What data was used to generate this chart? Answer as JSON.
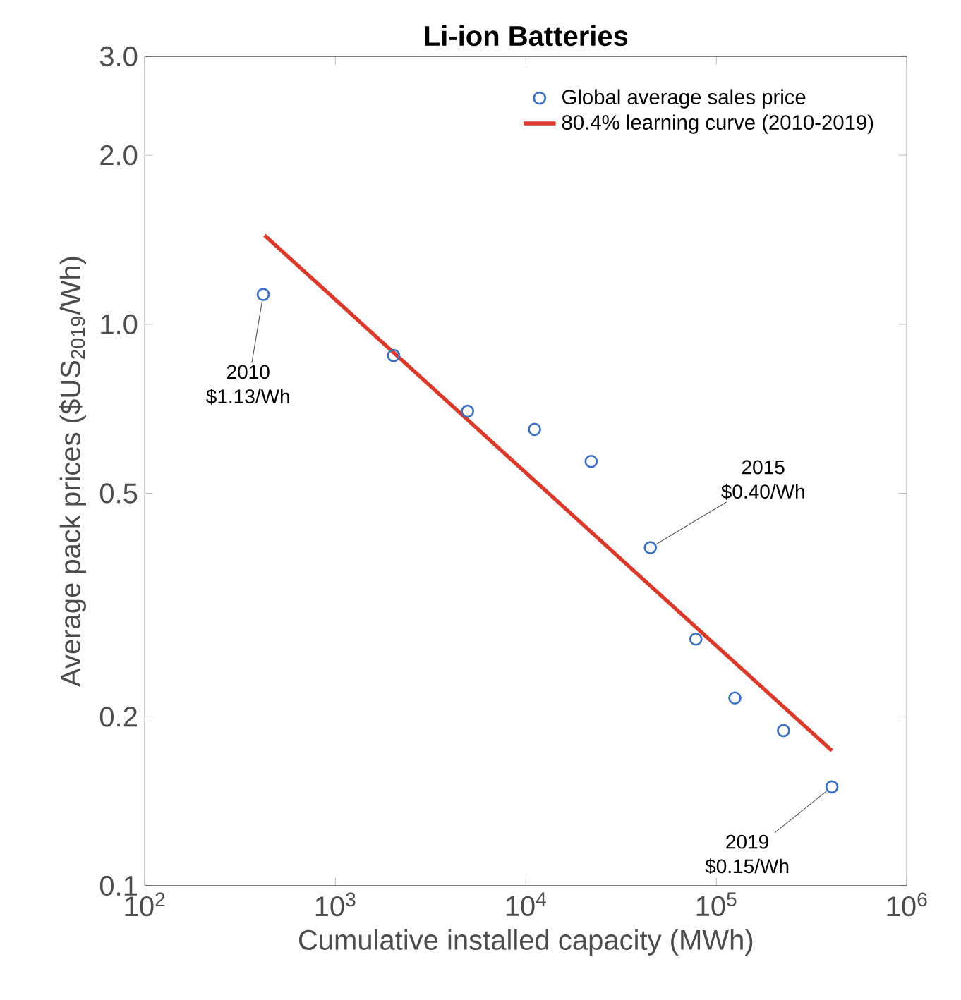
{
  "chart_data": {
    "type": "scatter",
    "title": "Li-ion Batteries",
    "xlabel": "Cumulative installed capacity (MWh)",
    "ylabel": "Average pack prices ($US$_{2019}$/Wh)",
    "log": "xy",
    "xlim": [
      100,
      1000000
    ],
    "ylim": [
      0.1,
      3.0
    ],
    "xticks": [
      {
        "value": 100,
        "label": "10$^{2}$"
      },
      {
        "value": 1000,
        "label": "10$^{3}$"
      },
      {
        "value": 10000,
        "label": "10$^{4}$"
      },
      {
        "value": 100000,
        "label": "10$^{5}$"
      },
      {
        "value": 1000000,
        "label": "10$^{6}$"
      }
    ],
    "yticks": [
      0.1,
      0.2,
      0.5,
      {
        "value": 1.0,
        "label": "1.0"
      },
      {
        "value": 2.0,
        "label": "2.0"
      },
      {
        "value": 3.0,
        "label": "3.0"
      }
    ],
    "legend": "top right",
    "series": [
      {
        "name": "Global average sales price",
        "marker": "circle",
        "color": "#3b6fc2",
        "x": [
          418,
          2020,
          4940,
          11100,
          22000,
          45000,
          78000,
          125000,
          225000,
          404000
        ],
        "values": [
          1.13,
          0.88,
          0.7,
          0.65,
          0.57,
          0.4,
          0.275,
          0.216,
          0.189,
          0.15
        ]
      },
      {
        "name": "80.4% learning curve (2010-2019)",
        "type": "line",
        "marker": "none",
        "color": "#d93a2b",
        "x": [
          425,
          404000
        ],
        "values": [
          1.44,
          0.174
        ]
      }
    ],
    "annotations": [
      {
        "text": "2010 $1.13/Wh",
        "x": 418,
        "y": 1.13
      },
      {
        "text": "2015 $0.40/Wh",
        "x": 45000,
        "y": 0.4
      },
      {
        "text": "2019 $0.15/Wh",
        "x": 404000,
        "y": 0.15
      }
    ]
  }
}
